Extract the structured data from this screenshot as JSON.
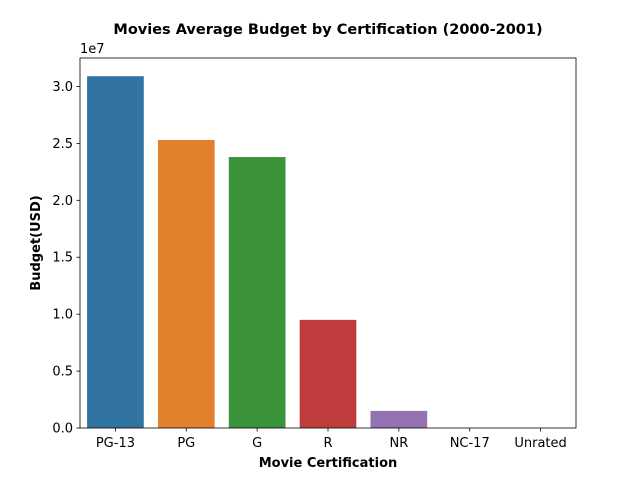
{
  "chart_data": {
    "type": "bar",
    "title": "Movies Average Budget by Certification (2000-2001)",
    "xlabel": "Movie Certification",
    "ylabel": "Budget(USD)",
    "y_offset_label": "1e7",
    "categories": [
      "PG-13",
      "PG",
      "G",
      "R",
      "NR",
      "NC-17",
      "Unrated"
    ],
    "values": [
      30900000,
      25300000,
      23800000,
      9500000,
      1500000,
      0,
      0
    ],
    "colors": [
      "#3274a1",
      "#e1812c",
      "#3a923a",
      "#c03d3e",
      "#9372b2",
      "#845b53",
      "#d684bd"
    ],
    "ylim": [
      0,
      32500000
    ],
    "yticks": [
      0,
      5000000,
      10000000,
      15000000,
      20000000,
      25000000,
      30000000
    ],
    "ytick_labels": [
      "0.0",
      "0.5",
      "1.0",
      "1.5",
      "2.0",
      "2.5",
      "3.0"
    ],
    "grid": false,
    "legend": "none"
  }
}
